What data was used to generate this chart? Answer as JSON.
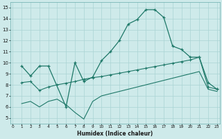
{
  "bg_color": "#ceeaea",
  "grid_color": "#aad4d4",
  "line_color": "#1e7868",
  "line1_x": [
    1,
    2,
    3,
    4,
    6,
    7,
    8,
    9,
    10,
    11,
    12,
    13,
    14,
    15,
    16,
    17,
    18,
    19,
    20,
    21,
    22,
    23
  ],
  "line1_y": [
    9.7,
    8.8,
    9.7,
    9.7,
    6.0,
    10.0,
    8.3,
    8.7,
    10.2,
    11.0,
    12.0,
    13.5,
    13.9,
    14.8,
    14.8,
    14.1,
    11.5,
    11.2,
    10.5,
    10.5,
    8.2,
    7.6
  ],
  "line2_x": [
    1,
    2,
    3,
    4,
    5,
    6,
    7,
    8,
    9,
    10,
    11,
    12,
    13,
    14,
    15,
    16,
    17,
    18,
    19,
    20,
    21,
    22,
    23
  ],
  "line2_y": [
    8.2,
    8.3,
    7.5,
    7.8,
    8.0,
    8.15,
    8.3,
    8.5,
    8.65,
    8.75,
    8.9,
    9.05,
    9.2,
    9.35,
    9.5,
    9.65,
    9.8,
    9.95,
    10.1,
    10.25,
    10.5,
    7.8,
    7.6
  ],
  "line3_x": [
    1,
    2,
    3,
    4,
    5,
    6,
    7,
    8,
    9,
    10,
    11,
    12,
    13,
    14,
    15,
    16,
    17,
    18,
    19,
    20,
    21,
    22,
    23
  ],
  "line3_y": [
    6.3,
    6.5,
    6.0,
    6.5,
    6.7,
    6.2,
    5.5,
    4.9,
    6.5,
    7.0,
    7.2,
    7.4,
    7.6,
    7.8,
    8.0,
    8.2,
    8.4,
    8.6,
    8.8,
    9.0,
    9.2,
    7.6,
    7.4
  ],
  "xlim": [
    -0.3,
    23.3
  ],
  "ylim": [
    4.5,
    15.5
  ],
  "xticks": [
    0,
    1,
    2,
    3,
    4,
    5,
    6,
    7,
    8,
    9,
    10,
    11,
    12,
    13,
    14,
    15,
    16,
    17,
    18,
    19,
    20,
    21,
    22,
    23
  ],
  "yticks": [
    5,
    6,
    7,
    8,
    9,
    10,
    11,
    12,
    13,
    14,
    15
  ],
  "xlabel": "Humidex (Indice chaleur)"
}
